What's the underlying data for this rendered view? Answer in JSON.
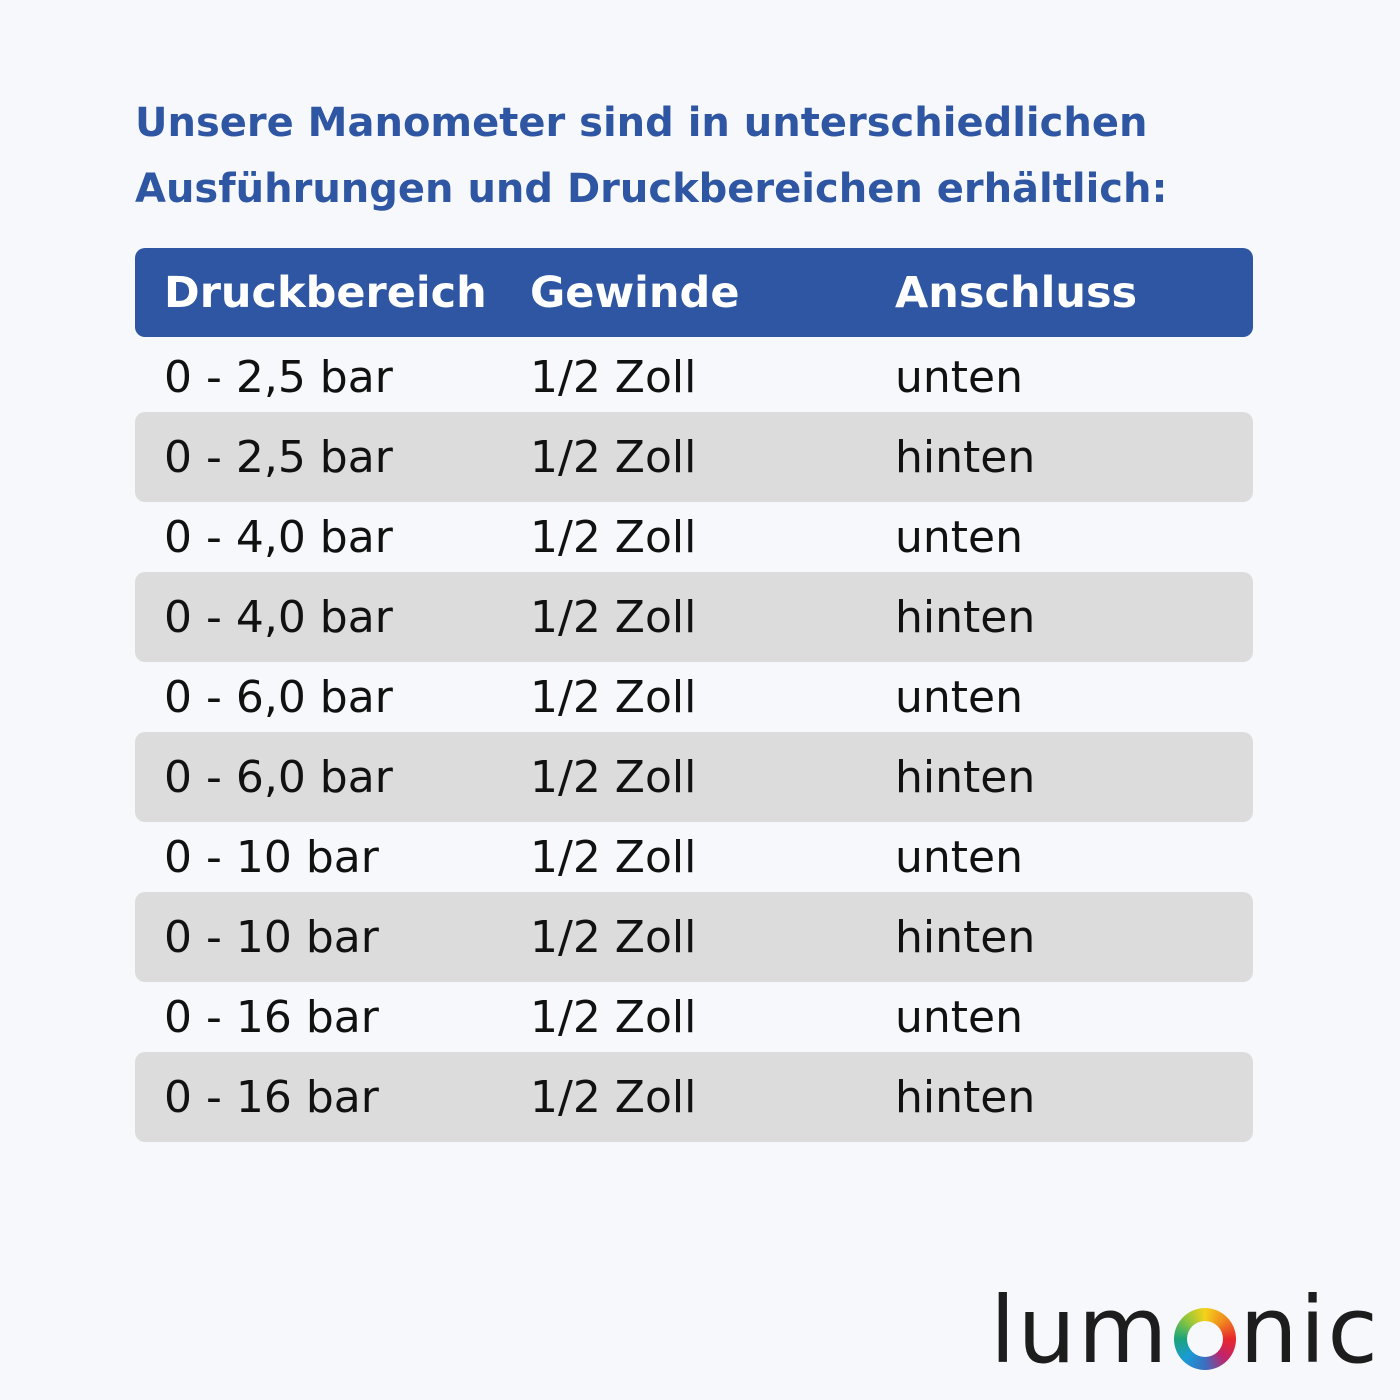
{
  "title": [
    "Unsere Manometer sind in unterschiedlichen",
    "Ausführungen und Druckbereichen erhältlich:"
  ],
  "table": {
    "headers": [
      "Druckbereich",
      "Gewinde",
      "Anschluss"
    ],
    "rows": [
      [
        "0 - 2,5 bar",
        "1/2 Zoll",
        "unten"
      ],
      [
        "0 - 2,5 bar",
        "1/2 Zoll",
        "hinten"
      ],
      [
        "0 - 4,0 bar",
        "1/2 Zoll",
        "unten"
      ],
      [
        "0 - 4,0 bar",
        "1/2 Zoll",
        "hinten"
      ],
      [
        "0 - 6,0 bar",
        "1/2 Zoll",
        "unten"
      ],
      [
        "0 - 6,0 bar",
        "1/2 Zoll",
        "hinten"
      ],
      [
        "0 - 10 bar",
        "1/2 Zoll",
        "unten"
      ],
      [
        "0 - 10 bar",
        "1/2 Zoll",
        "hinten"
      ],
      [
        "0 - 16 bar",
        "1/2 Zoll",
        "unten"
      ],
      [
        "0 - 16 bar",
        "1/2 Zoll",
        "hinten"
      ]
    ]
  },
  "logo": {
    "text": "lumonic",
    "left": "lum",
    "right": "nic"
  },
  "colors": {
    "accent": "#2e56a3",
    "row_alt": "#dcdcdc"
  }
}
